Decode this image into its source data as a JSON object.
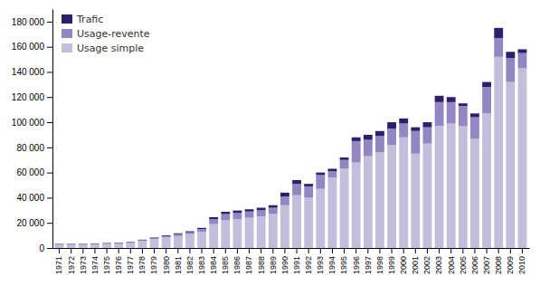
{
  "chart_data": {
    "type": "bar",
    "stacked": true,
    "categories": [
      "1971",
      "1972",
      "1973",
      "1974",
      "1975",
      "1976",
      "1977",
      "1978",
      "1979",
      "1980",
      "1981",
      "1982",
      "1983",
      "1984",
      "1985",
      "1986",
      "1987",
      "1988",
      "1989",
      "1990",
      "1991",
      "1992",
      "1993",
      "1994",
      "1995",
      "1996",
      "1997",
      "1998",
      "1999",
      "2000",
      "2001",
      "2002",
      "2003",
      "2004",
      "2005",
      "2006",
      "2007",
      "2008",
      "2009",
      "2010"
    ],
    "series": [
      {
        "name": "Usage simple",
        "color": "#c4bedd",
        "values": [
          2500,
          2500,
          2500,
          2800,
          3200,
          3500,
          4000,
          5500,
          7000,
          8500,
          9500,
          11000,
          13000,
          19000,
          22000,
          23000,
          24000,
          25000,
          27000,
          34000,
          42000,
          40000,
          47000,
          56000,
          63000,
          68000,
          73000,
          76000,
          82000,
          88000,
          75000,
          83000,
          97000,
          99000,
          97000,
          87000,
          107000,
          152000,
          132000,
          143000
        ]
      },
      {
        "name": "Usage-revente",
        "color": "#9287c2",
        "values": [
          500,
          500,
          500,
          500,
          500,
          500,
          600,
          700,
          800,
          1000,
          1500,
          1500,
          2000,
          4000,
          5000,
          5000,
          5000,
          5000,
          5000,
          7000,
          9000,
          9000,
          11000,
          5000,
          7000,
          17000,
          13000,
          13000,
          13000,
          11000,
          18000,
          13000,
          19000,
          17000,
          16000,
          17000,
          21000,
          15000,
          19000,
          12000
        ]
      },
      {
        "name": "Trafic",
        "color": "#2d1f6e",
        "values": [
          300,
          300,
          300,
          300,
          300,
          300,
          300,
          400,
          500,
          600,
          700,
          800,
          1000,
          1500,
          1800,
          1800,
          1800,
          2000,
          2000,
          3000,
          3000,
          2000,
          2000,
          2000,
          2000,
          3000,
          4000,
          4000,
          5000,
          4000,
          3000,
          4000,
          5000,
          4000,
          2000,
          3000,
          4000,
          8000,
          5000,
          3000
        ]
      }
    ],
    "ylim": [
      0,
      190000
    ],
    "yticks": [
      0,
      {
        "value": 20000,
        "label": "20 000"
      },
      {
        "value": 40000,
        "label": "40 000"
      },
      {
        "value": 60000,
        "label": "60 000"
      },
      {
        "value": 80000,
        "label": "80 000"
      },
      {
        "value": 100000,
        "label": "100 000"
      },
      {
        "value": 120000,
        "label": "120 000"
      },
      {
        "value": 140000,
        "label": "140 000"
      },
      {
        "value": 160000,
        "label": "160 000"
      },
      {
        "value": 180000,
        "label": "180 000"
      }
    ],
    "grid": false,
    "legend": "upper left"
  }
}
